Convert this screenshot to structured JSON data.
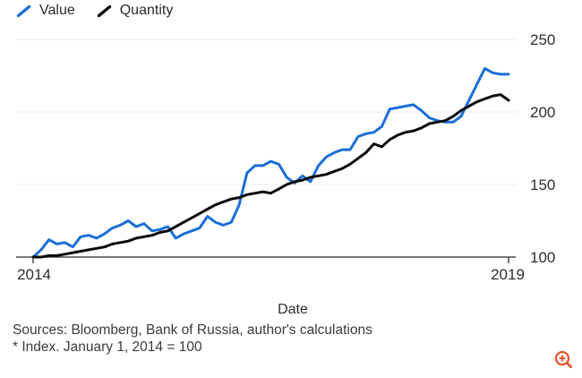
{
  "legend": {
    "items": [
      {
        "label": "Value",
        "color": "#1a6fd8"
      },
      {
        "label": "Quantity",
        "color": "#0a0a0a"
      }
    ]
  },
  "chart_data": {
    "type": "line",
    "x_axis": {
      "label": "Date",
      "tick_labels": [
        "2014",
        "2019"
      ],
      "range": [
        "2014",
        "2019"
      ]
    },
    "y_axis": {
      "side": "right",
      "ticks": [
        100,
        150,
        200,
        250
      ],
      "tick_labels_top_to_bottom": [
        "250",
        "200",
        "150",
        "100"
      ],
      "range": [
        100,
        250
      ],
      "baseline_value": 100
    },
    "grid": "horizontal-light",
    "legend_position": "top-left",
    "series": [
      {
        "name": "Value",
        "color": "#1a6fd8",
        "values": [
          100,
          105,
          112,
          109,
          110,
          107,
          114,
          115,
          113,
          116,
          120,
          122,
          125,
          121,
          123,
          118,
          119,
          121,
          113,
          116,
          118,
          120,
          128,
          124,
          122,
          124,
          136,
          158,
          163,
          163,
          166,
          164,
          155,
          151,
          156,
          152,
          163,
          169,
          172,
          174,
          174,
          183,
          185,
          186,
          190,
          202,
          203,
          204,
          205,
          201,
          196,
          194,
          193,
          193,
          197,
          208,
          219,
          230,
          227,
          226,
          226
        ]
      },
      {
        "name": "Quantity",
        "color": "#0a0a0a",
        "values": [
          100,
          100,
          101,
          101,
          102,
          103,
          104,
          105,
          106,
          107,
          109,
          110,
          111,
          113,
          114,
          115,
          117,
          118,
          121,
          124,
          127,
          130,
          133,
          136,
          138,
          140,
          141,
          143,
          144,
          145,
          144,
          147,
          150,
          152,
          153,
          155,
          156,
          157,
          159,
          161,
          164,
          168,
          172,
          178,
          176,
          181,
          184,
          186,
          187,
          189,
          192,
          193,
          194,
          197,
          201,
          204,
          207,
          209,
          211,
          212,
          208
        ]
      }
    ]
  },
  "footer": {
    "sources": "Sources: Bloomberg, Bank of Russia, author's calculations",
    "note": "* Index. January 1, 2014 = 100"
  },
  "icons": {
    "zoom": {
      "name": "zoom-in-icon",
      "color": "#e8562e"
    }
  }
}
